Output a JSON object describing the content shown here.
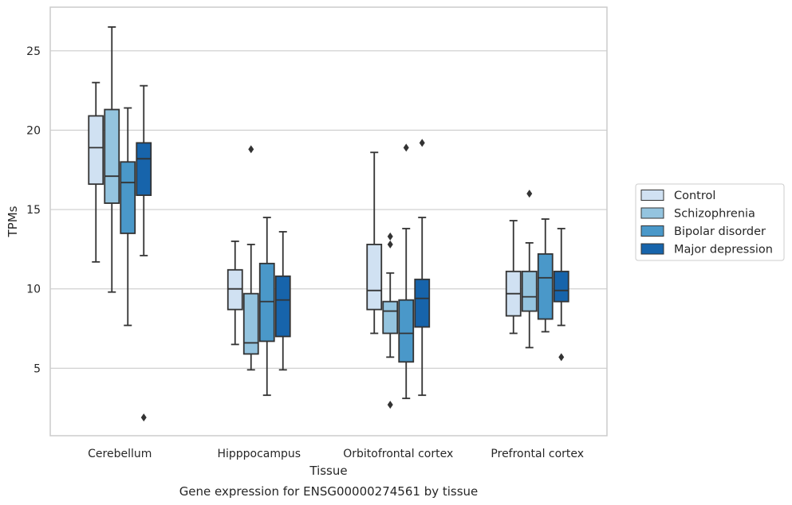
{
  "chart_data": {
    "type": "box",
    "xlabel": "Tissue",
    "ylabel": "TPMs",
    "caption": "Gene expression for ENSG00000274561 by tissue",
    "ylim": [
      0.75,
      27.75
    ],
    "yticks": [
      5,
      10,
      15,
      20,
      25
    ],
    "grid": "horizontal",
    "legend_position": "right",
    "categories": [
      "Cerebellum",
      "Hipppocampus",
      "Orbitofrontal cortex",
      "Prefrontal cortex"
    ],
    "series": [
      {
        "name": "Control",
        "color": "#d0e1f2",
        "boxes": [
          {
            "whisker_low": 11.7,
            "q1": 16.6,
            "median": 18.9,
            "q3": 20.9,
            "whisker_high": 23.0,
            "outliers": []
          },
          {
            "whisker_low": 6.5,
            "q1": 8.7,
            "median": 10.0,
            "q3": 11.2,
            "whisker_high": 13.0,
            "outliers": []
          },
          {
            "whisker_low": 7.2,
            "q1": 8.7,
            "median": 9.9,
            "q3": 12.8,
            "whisker_high": 18.6,
            "outliers": []
          },
          {
            "whisker_low": 7.2,
            "q1": 8.3,
            "median": 9.7,
            "q3": 11.1,
            "whisker_high": 14.3,
            "outliers": []
          }
        ]
      },
      {
        "name": "Schizophrenia",
        "color": "#94c4df",
        "boxes": [
          {
            "whisker_low": 9.8,
            "q1": 15.4,
            "median": 17.1,
            "q3": 21.3,
            "whisker_high": 26.5,
            "outliers": []
          },
          {
            "whisker_low": 4.9,
            "q1": 5.9,
            "median": 6.6,
            "q3": 9.7,
            "whisker_high": 12.8,
            "outliers": [
              18.8
            ]
          },
          {
            "whisker_low": 5.7,
            "q1": 7.2,
            "median": 8.6,
            "q3": 9.2,
            "whisker_high": 11.0,
            "outliers": [
              13.3,
              12.8,
              2.7
            ]
          },
          {
            "whisker_low": 6.3,
            "q1": 8.6,
            "median": 9.5,
            "q3": 11.1,
            "whisker_high": 12.9,
            "outliers": [
              16.0
            ]
          }
        ]
      },
      {
        "name": "Bipolar disorder",
        "color": "#4a98c9",
        "boxes": [
          {
            "whisker_low": 7.7,
            "q1": 13.5,
            "median": 16.7,
            "q3": 18.0,
            "whisker_high": 21.4,
            "outliers": []
          },
          {
            "whisker_low": 3.3,
            "q1": 6.7,
            "median": 9.2,
            "q3": 11.6,
            "whisker_high": 14.5,
            "outliers": []
          },
          {
            "whisker_low": 3.1,
            "q1": 5.4,
            "median": 7.2,
            "q3": 9.3,
            "whisker_high": 13.8,
            "outliers": [
              18.9
            ]
          },
          {
            "whisker_low": 7.3,
            "q1": 8.1,
            "median": 10.7,
            "q3": 12.2,
            "whisker_high": 14.4,
            "outliers": []
          }
        ]
      },
      {
        "name": "Major depression",
        "color": "#1764ab",
        "boxes": [
          {
            "whisker_low": 12.1,
            "q1": 15.9,
            "median": 18.2,
            "q3": 19.2,
            "whisker_high": 22.8,
            "outliers": [
              1.9
            ]
          },
          {
            "whisker_low": 4.9,
            "q1": 7.0,
            "median": 9.3,
            "q3": 10.8,
            "whisker_high": 13.6,
            "outliers": []
          },
          {
            "whisker_low": 3.3,
            "q1": 7.6,
            "median": 9.4,
            "q3": 10.6,
            "whisker_high": 14.5,
            "outliers": [
              19.2
            ]
          },
          {
            "whisker_low": 7.7,
            "q1": 9.2,
            "median": 9.9,
            "q3": 11.1,
            "whisker_high": 13.8,
            "outliers": [
              5.7
            ]
          }
        ]
      }
    ]
  }
}
